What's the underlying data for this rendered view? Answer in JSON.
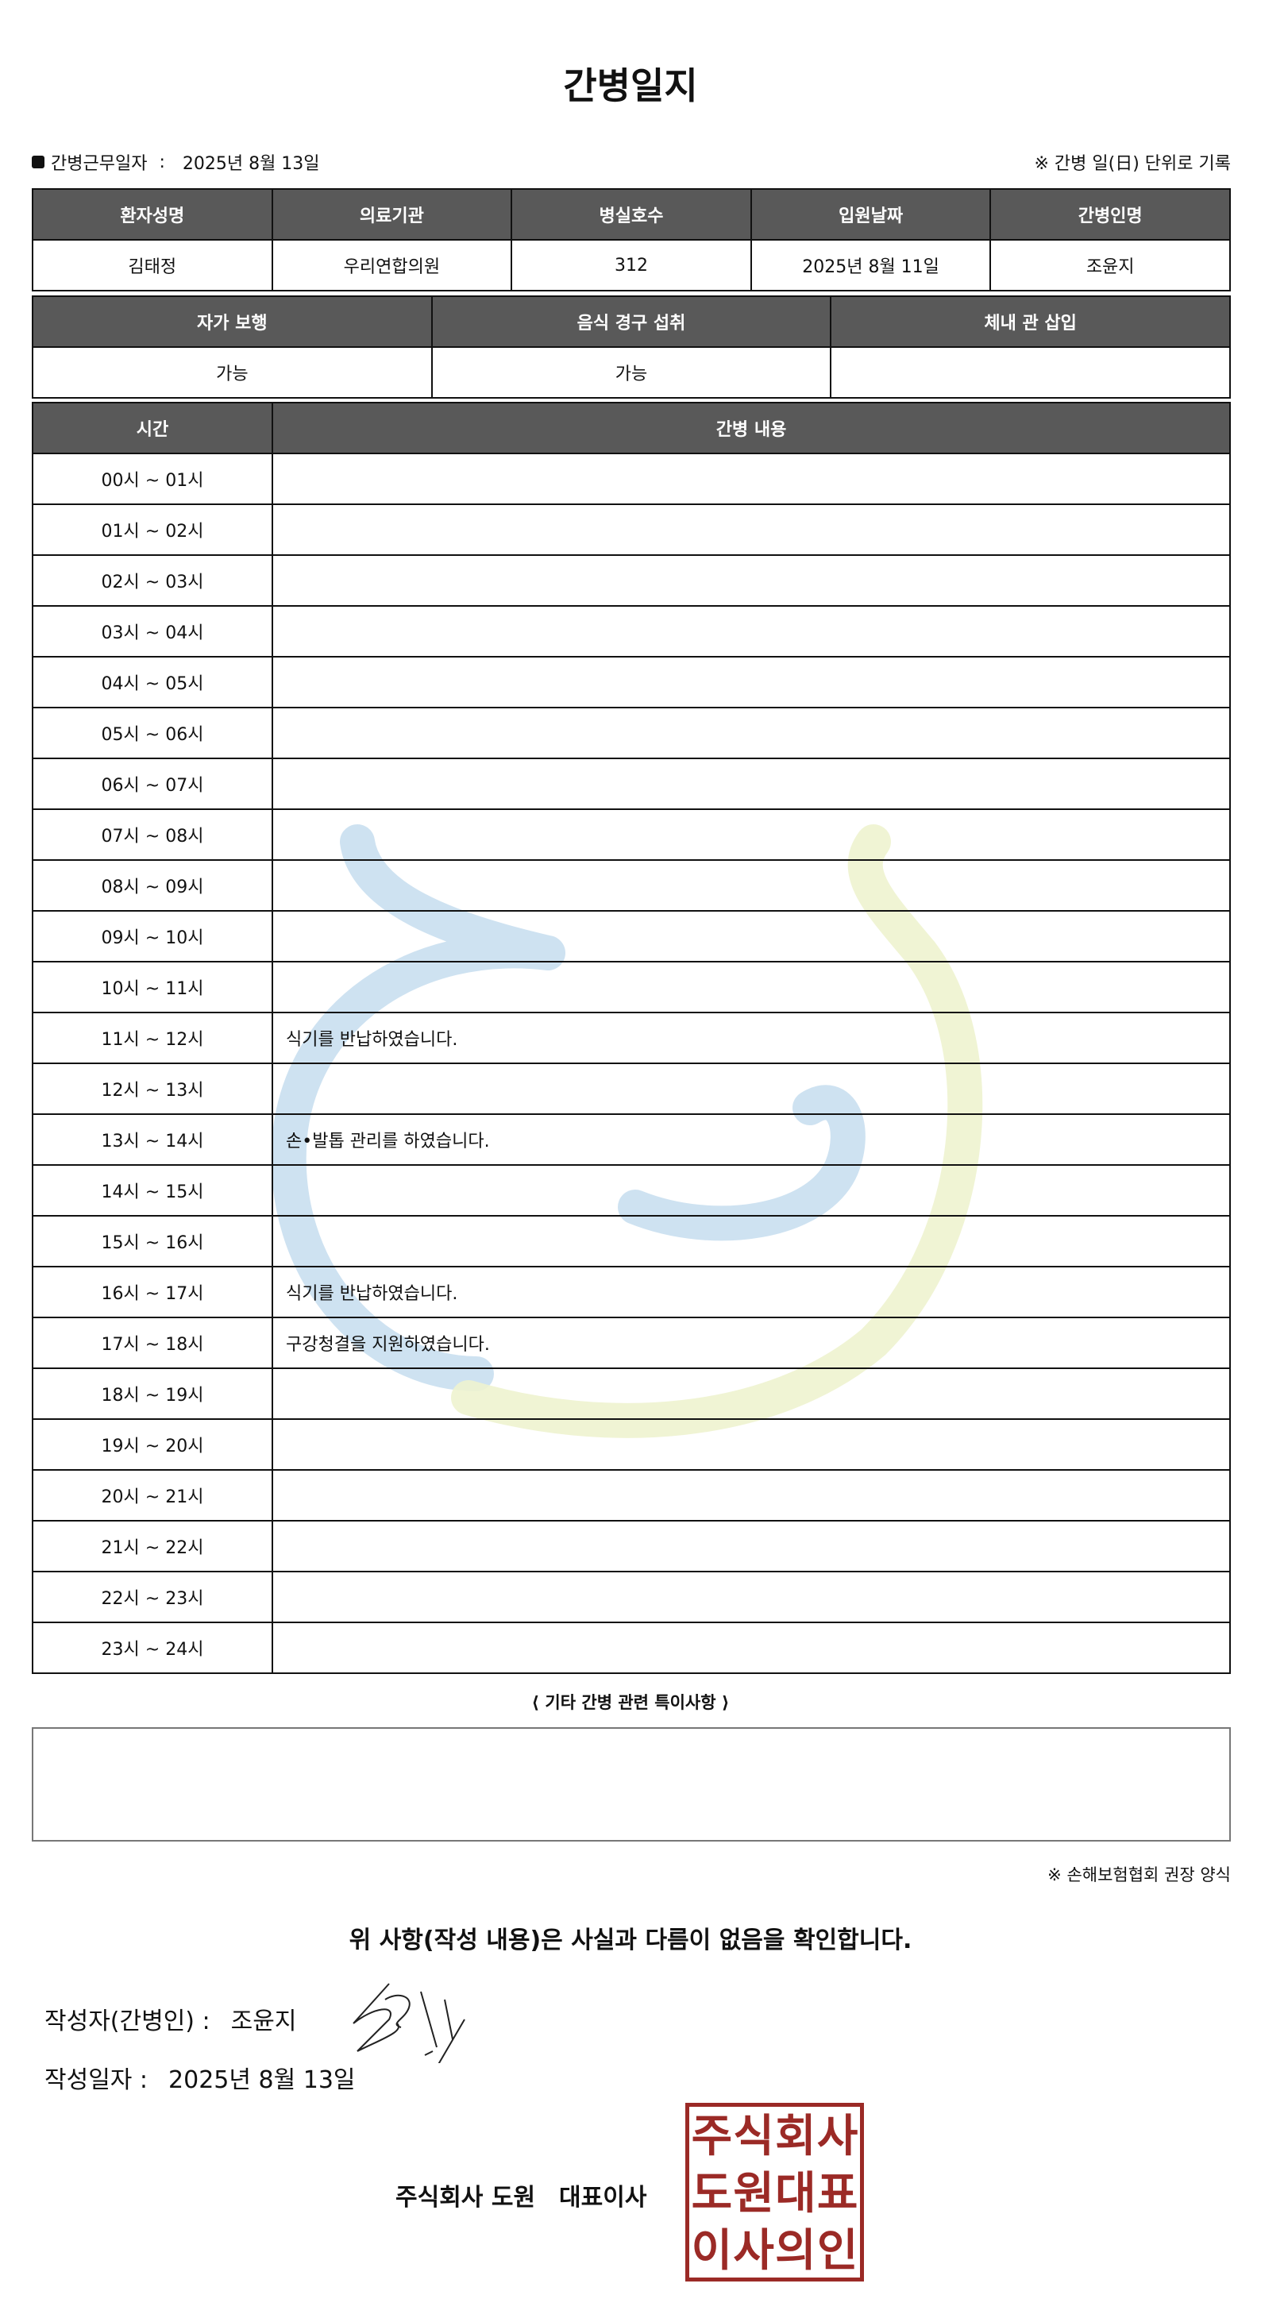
{
  "title": "간병일지",
  "work_date_label": "간병근무일자",
  "work_date": "2025년 8월 13일",
  "unit_note": "※ 간병 일(日) 단위로 기록",
  "patient_table": {
    "headers": [
      "환자성명",
      "의료기관",
      "병실호수",
      "입원날짜",
      "간병인명"
    ],
    "values": [
      "김태정",
      "우리연합의원",
      "312",
      "2025년 8월 11일",
      "조윤지"
    ]
  },
  "status_table": {
    "headers": [
      "자가 보행",
      "음식 경구 섭취",
      "체내 관 삽입"
    ],
    "values": [
      "가능",
      "가능",
      ""
    ]
  },
  "log_table": {
    "headers": [
      "시간",
      "간병 내용"
    ],
    "rows": [
      [
        "00시 ~ 01시",
        ""
      ],
      [
        "01시 ~ 02시",
        ""
      ],
      [
        "02시 ~ 03시",
        ""
      ],
      [
        "03시 ~ 04시",
        ""
      ],
      [
        "04시 ~ 05시",
        ""
      ],
      [
        "05시 ~ 06시",
        ""
      ],
      [
        "06시 ~ 07시",
        ""
      ],
      [
        "07시 ~ 08시",
        ""
      ],
      [
        "08시 ~ 09시",
        ""
      ],
      [
        "09시 ~ 10시",
        ""
      ],
      [
        "10시 ~ 11시",
        ""
      ],
      [
        "11시 ~ 12시",
        "식기를 반납하였습니다."
      ],
      [
        "12시 ~ 13시",
        ""
      ],
      [
        "13시 ~ 14시",
        "손•발톱 관리를 하였습니다."
      ],
      [
        "14시 ~ 15시",
        ""
      ],
      [
        "15시 ~ 16시",
        ""
      ],
      [
        "16시 ~ 17시",
        "식기를 반납하였습니다."
      ],
      [
        "17시 ~ 18시",
        "구강청결을 지원하였습니다."
      ],
      [
        "18시 ~ 19시",
        ""
      ],
      [
        "19시 ~ 20시",
        ""
      ],
      [
        "20시 ~ 21시",
        ""
      ],
      [
        "21시 ~ 22시",
        ""
      ],
      [
        "22시 ~ 23시",
        ""
      ],
      [
        "23시 ~ 24시",
        ""
      ]
    ]
  },
  "special_notes_label": "⟨ 기타 간병 관련 특이사항 ⟩",
  "special_notes": "",
  "form_note": "※ 손해보험협회 권장 양식",
  "confirm_text": "위 사항(작성 내용)은 사실과 다름이 없음을 확인합니다.",
  "writer_label": "작성자(간병인) :",
  "writer_name": "조윤지",
  "write_date_label": "작성일자 :",
  "write_date": "2025년 8월 13일",
  "company": "주식회사 도원",
  "ceo_label": "대표이사",
  "stamp_text": [
    "주",
    "식",
    "회",
    "사",
    "도",
    "원",
    "대",
    "표",
    "이",
    "사",
    "의",
    "인"
  ],
  "colors": {
    "header_bg": "#595959",
    "stamp": "#9b2a26",
    "watermark_blue": "#c9dff0",
    "watermark_yellow": "#eef3cf"
  }
}
